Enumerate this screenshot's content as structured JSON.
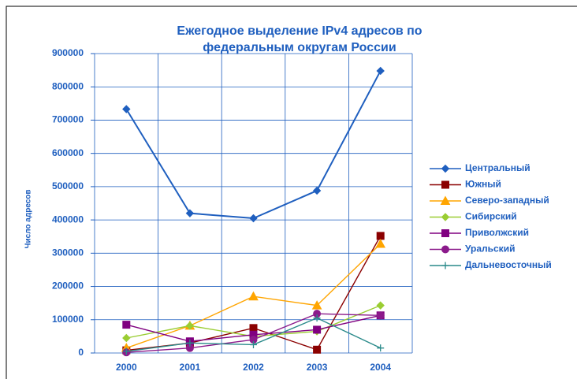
{
  "chart_data": {
    "type": "line",
    "title": [
      "Ежегодное выделение IPv4 адресов по",
      "федеральным округам России"
    ],
    "y_label": "Число адресов",
    "categories": [
      "2000",
      "2001",
      "2002",
      "2003",
      "2004"
    ],
    "ylim": [
      0,
      900000
    ],
    "yticks": [
      0,
      100000,
      200000,
      300000,
      400000,
      500000,
      600000,
      700000,
      800000,
      900000
    ],
    "grid": true,
    "legend": "right",
    "series": [
      {
        "name": "Центральный",
        "color": "#1f5fbf",
        "marker": "diamond",
        "values": [
          733000,
          420000,
          405000,
          488000,
          848000
        ]
      },
      {
        "name": "Южный",
        "color": "#8b0000",
        "marker": "square",
        "values": [
          8000,
          30000,
          75000,
          10000,
          352000
        ]
      },
      {
        "name": "Северо-западный",
        "color": "#ffa500",
        "marker": "triangle",
        "values": [
          15000,
          82000,
          170000,
          143000,
          328000
        ]
      },
      {
        "name": "Сибирский",
        "color": "#9acd32",
        "marker": "diamond",
        "values": [
          45000,
          82000,
          50000,
          65000,
          143000
        ]
      },
      {
        "name": "Приволжский",
        "color": "#800080",
        "marker": "square",
        "values": [
          85000,
          35000,
          55000,
          70000,
          113000
        ]
      },
      {
        "name": "Уральский",
        "color": "#8b1a8b",
        "marker": "circle",
        "values": [
          2000,
          15000,
          40000,
          118000,
          113000
        ]
      },
      {
        "name": "Дальневосточный",
        "color": "#2a8a8a",
        "marker": "plus",
        "values": [
          5000,
          30000,
          25000,
          105000,
          15000
        ]
      }
    ]
  }
}
